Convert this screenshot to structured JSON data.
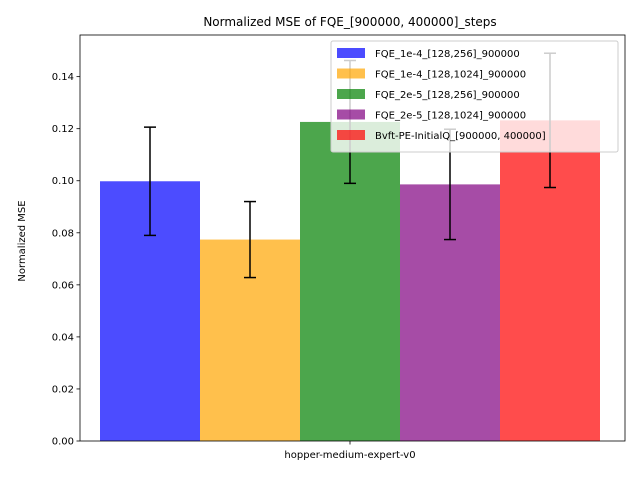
{
  "chart_data": {
    "type": "bar",
    "title": "Normalized MSE of FQE_[900000, 400000]_steps",
    "xlabel": "",
    "ylabel": "Normalized MSE",
    "categories": [
      "hopper-medium-expert-v0"
    ],
    "ylim": [
      0,
      0.156
    ],
    "yticks": [
      0.0,
      0.02,
      0.04,
      0.06,
      0.08,
      0.1,
      0.12,
      0.14
    ],
    "ytick_labels": [
      "0.00",
      "0.02",
      "0.04",
      "0.06",
      "0.08",
      "0.10",
      "0.12",
      "0.14"
    ],
    "grid": false,
    "legend_position": "top-right",
    "series": [
      {
        "name": "FQE_1e-4_[128,256]_900000",
        "color": "#0000ff",
        "values": [
          0.0998
        ],
        "error": [
          0.0208
        ]
      },
      {
        "name": "FQE_1e-4_[128,1024]_900000",
        "color": "#ffa500",
        "values": [
          0.0774
        ],
        "error": [
          0.0146
        ]
      },
      {
        "name": "FQE_2e-5_[128,256]_900000",
        "color": "#008000",
        "values": [
          0.1226
        ],
        "error": [
          0.0236
        ]
      },
      {
        "name": "FQE_2e-5_[128,1024]_900000",
        "color": "#800080",
        "values": [
          0.0986
        ],
        "error": [
          0.0212
        ]
      },
      {
        "name": "Bvft-PE-InitialQ_[900000, 400000]",
        "color": "#ff0000",
        "values": [
          0.1232
        ],
        "error": [
          0.0258
        ]
      }
    ]
  }
}
